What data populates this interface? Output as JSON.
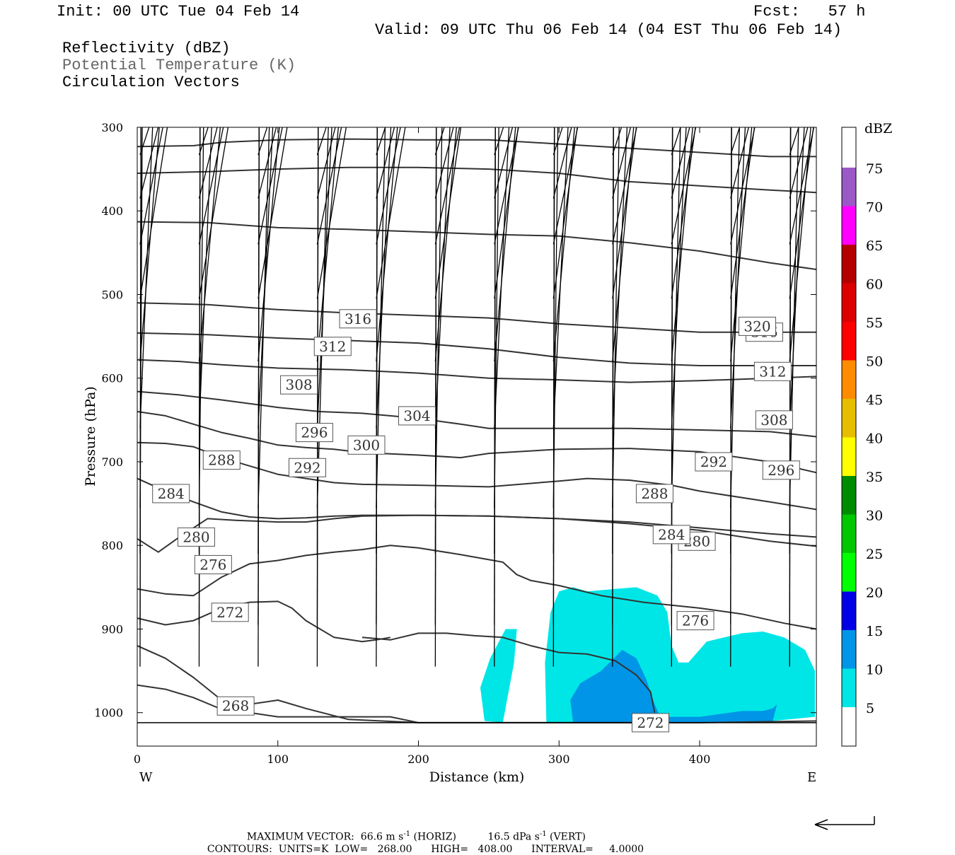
{
  "header": {
    "init": "Init: 00 UTC Tue 04 Feb 14",
    "fcst": "Fcst:   57 h",
    "valid": "Valid: 09 UTC Thu 06 Feb 14 (04 EST Thu 06 Feb 14)",
    "fields": [
      "Reflectivity (dBZ)",
      "Potential Temperature (K)",
      "Circulation Vectors"
    ]
  },
  "footer": {
    "max_vector_label": "MAXIMUM VECTOR:",
    "horiz": "66.6 m s",
    "horiz_unit": "(HORIZ)",
    "vert": "16.5 dPa s",
    "vert_unit": "(VERT)",
    "exp": "-1",
    "contours_label": "CONTOURS:",
    "units": "UNITS=K",
    "low": "LOW=   268.00",
    "high": "HIGH=   408.00",
    "interval": "INTERVAL=     4.0000"
  },
  "chart_data": {
    "type": "line",
    "xlabel": "Distance (km)",
    "ylabel": "Pressure (hPa)",
    "xlim": [
      0,
      483
    ],
    "ylim": [
      1040,
      300
    ],
    "y_scale": "linear-inverted",
    "x_ticks": [
      0,
      100,
      200,
      300,
      400
    ],
    "y_ticks": [
      300,
      400,
      500,
      600,
      700,
      800,
      900,
      1000
    ],
    "x_end_labels": {
      "left": "W",
      "right": "E"
    },
    "ground_level_hPa": 1012,
    "colorbar": {
      "title": "dBZ",
      "ticks": [
        5,
        10,
        15,
        20,
        25,
        30,
        35,
        40,
        45,
        50,
        55,
        60,
        65,
        70,
        75
      ],
      "colors": [
        "#00e6e6",
        "#0095e6",
        "#0000e6",
        "#00ff00",
        "#00c800",
        "#008c00",
        "#ffff00",
        "#e6be00",
        "#ff8c00",
        "#ff0000",
        "#dc0000",
        "#b40000",
        "#ff00ff",
        "#9b59c8"
      ]
    },
    "reflectivity": [
      {
        "dbz": 5,
        "points": [
          [
            247,
            1010
          ],
          [
            244,
            970
          ],
          [
            251,
            935
          ],
          [
            262,
            900
          ],
          [
            270,
            900
          ],
          [
            268,
            940
          ],
          [
            263,
            985
          ],
          [
            260,
            1012
          ],
          [
            247,
            1010
          ]
        ]
      },
      {
        "dbz": 5,
        "points": [
          [
            291,
            1012
          ],
          [
            290,
            940
          ],
          [
            294,
            880
          ],
          [
            300,
            855
          ],
          [
            310,
            850
          ],
          [
            320,
            855
          ],
          [
            340,
            852
          ],
          [
            355,
            850
          ],
          [
            370,
            860
          ],
          [
            377,
            880
          ],
          [
            380,
            920
          ],
          [
            385,
            940
          ],
          [
            392,
            940
          ],
          [
            405,
            915
          ],
          [
            430,
            905
          ],
          [
            445,
            903
          ],
          [
            460,
            910
          ],
          [
            475,
            925
          ],
          [
            482,
            950
          ],
          [
            482,
            1005
          ],
          [
            440,
            1012
          ],
          [
            291,
            1012
          ]
        ]
      },
      {
        "dbz": 10,
        "points": [
          [
            310,
            1012
          ],
          [
            308,
            985
          ],
          [
            315,
            965
          ],
          [
            330,
            950
          ],
          [
            345,
            925
          ],
          [
            355,
            935
          ],
          [
            362,
            960
          ],
          [
            368,
            990
          ],
          [
            372,
            1005
          ],
          [
            400,
            1005
          ],
          [
            430,
            998
          ],
          [
            445,
            998
          ],
          [
            452,
            995
          ],
          [
            455,
            990
          ],
          [
            452,
            1010
          ],
          [
            430,
            1012
          ],
          [
            310,
            1012
          ]
        ]
      }
    ],
    "theta_series": [
      {
        "name": "268",
        "x": [
          0,
          20,
          40,
          60,
          80,
          100,
          120,
          150,
          200,
          300,
          400,
          483
        ],
        "y": [
          967,
          972,
          982,
          996,
          990,
          985,
          995,
          1008,
          1012,
          1012,
          1012,
          1010
        ]
      },
      {
        "name": "272",
        "x": [
          0,
          20,
          40,
          60,
          70,
          80,
          100,
          120,
          140,
          160,
          180,
          200,
          230,
          260,
          290,
          320,
          345,
          360,
          366,
          368
        ],
        "y": [
          920,
          935,
          958,
          985,
          993,
          1000,
          1005,
          1005,
          1005,
          1005,
          1005,
          1012,
          1012,
          1012,
          1012,
          1012,
          1012,
          1012,
          1012,
          1012
        ]
      },
      {
        "name": "272b",
        "x": [
          160,
          180,
          200,
          220,
          240,
          260,
          280,
          300,
          320,
          340,
          355,
          365,
          368
        ],
        "y": [
          910,
          913,
          905,
          905,
          908,
          910,
          920,
          928,
          930,
          938,
          955,
          975,
          1000
        ]
      },
      {
        "name": "272c",
        "x": [
          0,
          20,
          40,
          60,
          80,
          100,
          110,
          120,
          140,
          160,
          170,
          180
        ],
        "y": [
          887,
          895,
          890,
          875,
          868,
          867,
          875,
          890,
          910,
          915,
          913,
          910
        ]
      },
      {
        "name": "276",
        "x": [
          0,
          20,
          40,
          60,
          80,
          100,
          120,
          140,
          160,
          180,
          200,
          230,
          260,
          270,
          280,
          300,
          330,
          360,
          400,
          430,
          460,
          483
        ],
        "y": [
          852,
          858,
          860,
          838,
          822,
          818,
          812,
          808,
          805,
          800,
          803,
          811,
          820,
          835,
          842,
          848,
          860,
          868,
          875,
          882,
          893,
          900
        ]
      },
      {
        "name": "280",
        "x": [
          0,
          15,
          30,
          50,
          70,
          100,
          120,
          140,
          160,
          200,
          250,
          300,
          350,
          400,
          450,
          483
        ],
        "y": [
          792,
          808,
          790,
          768,
          770,
          772,
          772,
          768,
          765,
          764,
          765,
          768,
          774,
          782,
          795,
          801
        ]
      },
      {
        "name": "284",
        "x": [
          0,
          20,
          40,
          60,
          80,
          100,
          120,
          140,
          160,
          200,
          250,
          300,
          350,
          400,
          450,
          483
        ],
        "y": [
          720,
          735,
          748,
          760,
          766,
          768,
          767,
          765,
          764,
          764,
          765,
          768,
          772,
          779,
          786,
          790
        ]
      },
      {
        "name": "288",
        "x": [
          0,
          20,
          40,
          60,
          80,
          100,
          120,
          140,
          160,
          200,
          250,
          300,
          320,
          350,
          380,
          400,
          450,
          483
        ],
        "y": [
          677,
          678,
          682,
          695,
          705,
          715,
          720,
          725,
          727,
          728,
          730,
          723,
          720,
          722,
          728,
          735,
          748,
          757
        ]
      },
      {
        "name": "292",
        "x": [
          0,
          20,
          40,
          60,
          80,
          100,
          120,
          140,
          160,
          200,
          230,
          250,
          300,
          350,
          400,
          450,
          483
        ],
        "y": [
          640,
          645,
          655,
          665,
          672,
          680,
          683,
          685,
          689,
          692,
          695,
          690,
          685,
          684,
          688,
          700,
          713
        ]
      },
      {
        "name": "296",
        "x": [
          0,
          30,
          60,
          100,
          130,
          160,
          200,
          230,
          250,
          300,
          350,
          400,
          450,
          483
        ],
        "y": [
          616,
          620,
          626,
          635,
          640,
          642,
          648,
          655,
          660,
          660,
          660,
          662,
          664,
          670
        ]
      },
      {
        "name": "300",
        "x": [
          0,
          30,
          60,
          100,
          150,
          200,
          250,
          300,
          350,
          400,
          450,
          483
        ],
        "y": [
          578,
          580,
          584,
          588,
          590,
          594,
          600,
          602,
          605,
          603,
          600,
          598
        ]
      },
      {
        "name": "304",
        "x": [
          0,
          50,
          100,
          150,
          200,
          250,
          300,
          350,
          400,
          450,
          483
        ],
        "y": [
          546,
          548,
          552,
          555,
          558,
          565,
          575,
          582,
          585,
          585,
          585
        ]
      },
      {
        "name": "308",
        "x": [
          0,
          50,
          100,
          150,
          200,
          250,
          300,
          350,
          400,
          450,
          483
        ],
        "y": [
          510,
          512,
          518,
          522,
          525,
          528,
          535,
          540,
          545,
          545,
          545
        ]
      },
      {
        "name": "312",
        "x": [
          0,
          50,
          100,
          150,
          200,
          250,
          300,
          350,
          400,
          450,
          483
        ],
        "y": [
          413,
          414,
          420,
          422,
          425,
          428,
          430,
          438,
          448,
          462,
          470
        ]
      },
      {
        "name": "316",
        "x": [
          0,
          50,
          100,
          150,
          200,
          250,
          300,
          350,
          400,
          450,
          483
        ],
        "y": [
          355,
          353,
          350,
          348,
          348,
          350,
          355,
          365,
          370,
          375,
          378
        ]
      },
      {
        "name": "320",
        "x": [
          0,
          40,
          60,
          100,
          150,
          200,
          250,
          300,
          350,
          400,
          450,
          483
        ],
        "y": [
          323,
          322,
          318,
          315,
          314,
          315,
          315,
          320,
          325,
          330,
          335,
          335
        ]
      }
    ],
    "contour_labels": [
      {
        "text": "268",
        "x": 70,
        "y": 992
      },
      {
        "text": "272",
        "x": 66,
        "y": 880
      },
      {
        "text": "272",
        "x": 365,
        "y": 1012
      },
      {
        "text": "276",
        "x": 54,
        "y": 823
      },
      {
        "text": "276",
        "x": 397,
        "y": 890
      },
      {
        "text": "280",
        "x": 42,
        "y": 790
      },
      {
        "text": "280",
        "x": 398,
        "y": 795
      },
      {
        "text": "284",
        "x": 24,
        "y": 738
      },
      {
        "text": "284",
        "x": 380,
        "y": 787
      },
      {
        "text": "288",
        "x": 60,
        "y": 698
      },
      {
        "text": "288",
        "x": 368,
        "y": 738
      },
      {
        "text": "292",
        "x": 121,
        "y": 707
      },
      {
        "text": "292",
        "x": 410,
        "y": 700
      },
      {
        "text": "296",
        "x": 126,
        "y": 665
      },
      {
        "text": "296",
        "x": 458,
        "y": 710
      },
      {
        "text": "300",
        "x": 163,
        "y": 680
      },
      {
        "text": "304",
        "x": 199,
        "y": 645
      },
      {
        "text": "308",
        "x": 115,
        "y": 608
      },
      {
        "text": "308",
        "x": 453,
        "y": 650
      },
      {
        "text": "312",
        "x": 139,
        "y": 562
      },
      {
        "text": "312",
        "x": 452,
        "y": 592
      },
      {
        "text": "316",
        "x": 157,
        "y": 529
      },
      {
        "text": "316",
        "x": 446,
        "y": 545
      },
      {
        "text": "320",
        "x": 441,
        "y": 538
      }
    ],
    "vectors": [
      {
        "y": 333,
        "u": [
          0.85,
          0.85,
          0.85,
          0.85,
          0.85,
          0.85,
          0.85,
          0.85,
          0.85,
          0.85,
          0.85,
          0.85
        ],
        "v": [
          -0.3,
          -0.25,
          -0.2,
          -0.15,
          -0.1,
          -0.05,
          0,
          0,
          0,
          -0.1,
          -0.2,
          -0.2
        ]
      },
      {
        "y": 385,
        "u": [
          0.85,
          0.85,
          0.85,
          0.85,
          0.85,
          0.85,
          0.85,
          0.85,
          0.85,
          0.85,
          0.85,
          0.85
        ],
        "v": [
          -0.2,
          -0.15,
          -0.1,
          0,
          0,
          0,
          0,
          0,
          0,
          0,
          0,
          0
        ]
      },
      {
        "y": 440,
        "u": [
          0.8,
          0.85,
          0.85,
          0.85,
          0.85,
          0.85,
          0.85,
          0.85,
          0.85,
          0.85,
          0.85,
          0.85
        ],
        "v": [
          -0.2,
          -0.1,
          -0.05,
          0,
          0,
          0,
          0,
          0,
          0,
          0,
          0,
          0
        ]
      },
      {
        "y": 505,
        "u": [
          0.8,
          0.85,
          0.85,
          0.85,
          0.85,
          0.75,
          0.7,
          0.7,
          0.7,
          0.7,
          0.7,
          0.7
        ],
        "v": [
          -0.15,
          0,
          0,
          0,
          0,
          0,
          0,
          0,
          0,
          0,
          0,
          0
        ]
      },
      {
        "y": 580,
        "u": [
          0.5,
          0.55,
          0.55,
          0.55,
          0.55,
          0.55,
          0.55,
          0.55,
          0.55,
          0.55,
          0.55,
          0.55
        ],
        "v": [
          -0.1,
          0,
          0,
          0,
          0,
          0,
          0,
          0,
          0,
          0,
          0,
          0
        ]
      },
      {
        "y": 660,
        "u": [
          0.3,
          0.3,
          0.35,
          0.35,
          0.35,
          0.35,
          0.35,
          0.35,
          0.35,
          0.35,
          0.35,
          0.35
        ],
        "v": [
          -0.05,
          0.1,
          0.1,
          0.05,
          0,
          0,
          0,
          0,
          0,
          0,
          0,
          0
        ]
      },
      {
        "y": 755,
        "u": [
          0.05,
          0.1,
          0.25,
          0.25,
          0.2,
          0.15,
          0.1,
          0.1,
          0.15,
          0.2,
          0.2,
          0.2
        ],
        "v": [
          0.05,
          0.05,
          0.05,
          0.05,
          0,
          0,
          0,
          0,
          0,
          0,
          0,
          0
        ]
      },
      {
        "y": 810,
        "u": [
          0.02,
          0.02,
          0.02,
          0.02,
          0.02,
          0.02,
          0.02,
          0.02,
          0.02,
          0.02,
          0.02,
          0.02
        ],
        "v": [
          0.1,
          0.05,
          0.05,
          0.05,
          0.05,
          0.05,
          0.05,
          0.05,
          0.05,
          0.05,
          0.05,
          0.05
        ]
      },
      {
        "y": 895,
        "u": [
          0.02,
          0.02,
          0.02,
          0.02,
          0.02,
          0.02,
          0.02,
          0.02,
          0.02,
          0.02,
          0.02,
          0.02
        ],
        "v": [
          0.1,
          0.1,
          0.1,
          0.1,
          0.1,
          0.1,
          0.1,
          0.1,
          0.1,
          0.05,
          0.05,
          0.05
        ]
      },
      {
        "y": 945,
        "u": [
          0.02,
          0.02,
          0.02,
          0.02,
          0.02,
          0.02,
          0.02,
          0.02,
          0.02,
          0.02,
          0.02,
          0.02
        ],
        "v": [
          0.05,
          0.05,
          0.05,
          0.05,
          0.05,
          0.05,
          0.05,
          0.05,
          0.05,
          0.05,
          0.05,
          0.05
        ]
      }
    ]
  }
}
